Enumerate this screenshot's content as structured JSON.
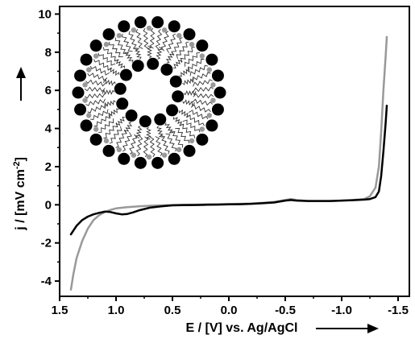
{
  "chart_data": {
    "type": "line",
    "xlabel_prefix": "E / [V] vs. Ag/AgCl",
    "ylabel_main": "j / [mV cm",
    "ylabel_sup": "-2",
    "ylabel_end": "]",
    "xlim": [
      1.5,
      -1.6
    ],
    "ylim": [
      -4.8,
      10.4
    ],
    "x_ticks": [
      1.5,
      1.0,
      0.5,
      0.0,
      -0.5,
      -1.0,
      -1.5
    ],
    "x_tick_labels": [
      "1.5",
      "1.0",
      "0.5",
      "0.0",
      "-0.5",
      "-1.0",
      "-1.5"
    ],
    "y_ticks": [
      -4,
      -2,
      0,
      2,
      4,
      6,
      8,
      10
    ],
    "y_tick_labels": [
      "-4",
      "-2",
      "0",
      "2",
      "4",
      "6",
      "8",
      "10"
    ],
    "grid": false,
    "series": [
      {
        "color": "#999999",
        "x": [
          1.4,
          1.38,
          1.35,
          1.3,
          1.25,
          1.2,
          1.15,
          1.1,
          1.05,
          1.0,
          0.9,
          0.8,
          0.7,
          0.6,
          0.5,
          0.4,
          0.3,
          0.2,
          0.1,
          0.0,
          -0.1,
          -0.2,
          -0.3,
          -0.4,
          -0.5,
          -0.55,
          -0.6,
          -0.7,
          -0.8,
          -0.9,
          -1.0,
          -1.1,
          -1.2,
          -1.25,
          -1.3,
          -1.33,
          -1.35,
          -1.37,
          -1.39,
          -1.4
        ],
        "y": [
          -4.45,
          -3.7,
          -2.8,
          -1.9,
          -1.25,
          -0.8,
          -0.55,
          -0.38,
          -0.27,
          -0.19,
          -0.12,
          -0.08,
          -0.05,
          -0.03,
          -0.01,
          0.0,
          0.01,
          0.02,
          0.03,
          0.04,
          0.05,
          0.07,
          0.1,
          0.15,
          0.25,
          0.3,
          0.25,
          0.2,
          0.2,
          0.2,
          0.22,
          0.25,
          0.3,
          0.45,
          0.9,
          2.0,
          3.8,
          6.0,
          7.8,
          8.8
        ]
      },
      {
        "color": "#000000",
        "x": [
          1.4,
          1.35,
          1.3,
          1.25,
          1.2,
          1.15,
          1.1,
          1.05,
          1.0,
          0.95,
          0.9,
          0.85,
          0.8,
          0.7,
          0.6,
          0.5,
          0.4,
          0.3,
          0.2,
          0.1,
          0.0,
          -0.1,
          -0.2,
          -0.3,
          -0.4,
          -0.5,
          -0.55,
          -0.6,
          -0.7,
          -0.8,
          -0.9,
          -1.0,
          -1.1,
          -1.2,
          -1.25,
          -1.3,
          -1.33,
          -1.35,
          -1.37,
          -1.39,
          -1.4
        ],
        "y": [
          -1.55,
          -1.1,
          -0.8,
          -0.62,
          -0.5,
          -0.42,
          -0.36,
          -0.38,
          -0.45,
          -0.5,
          -0.48,
          -0.4,
          -0.3,
          -0.15,
          -0.08,
          -0.03,
          -0.02,
          -0.01,
          0.0,
          0.01,
          0.02,
          0.03,
          0.05,
          0.08,
          0.12,
          0.22,
          0.25,
          0.22,
          0.2,
          0.2,
          0.2,
          0.22,
          0.24,
          0.27,
          0.3,
          0.4,
          0.7,
          1.5,
          2.8,
          4.3,
          5.2
        ]
      }
    ]
  },
  "inset": {
    "name": "micelle-illustration"
  }
}
